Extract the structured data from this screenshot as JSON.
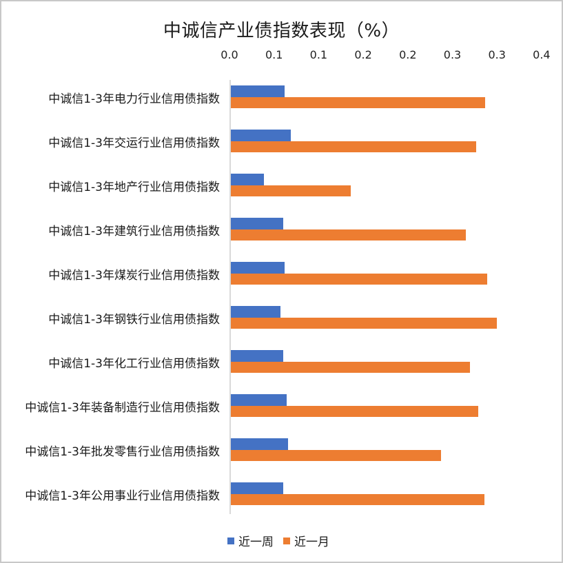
{
  "chart_data": {
    "type": "bar",
    "orientation": "horizontal",
    "title": "中诚信产业债指数表现（%）",
    "xlabel": "",
    "ylabel": "",
    "xlim": [
      0,
      0.35
    ],
    "tick_values": [
      0.0,
      0.05,
      0.1,
      0.15,
      0.2,
      0.25,
      0.3,
      0.35
    ],
    "tick_labels": [
      "0.0",
      "0.1",
      "0.1",
      "0.2",
      "0.2",
      "0.3",
      "0.3",
      "0.4"
    ],
    "axis_position": "top",
    "grid": false,
    "legend_position": "bottom",
    "categories": [
      "中诚信1-3年电力行业信用债指数",
      "中诚信1-3年交运行业信用债指数",
      "中诚信1-3年地产行业信用债指数",
      "中诚信1-3年建筑行业信用债指数",
      "中诚信1-3年煤炭行业信用债指数",
      "中诚信1-3年钢铁行业信用债指数",
      "中诚信1-3年化工行业信用债指数",
      "中诚信1-3年装备制造行业信用债指数",
      "中诚信1-3年批发零售行业信用债指数",
      "中诚信1-3年公用事业行业信用债指数"
    ],
    "series": [
      {
        "name": "近一周",
        "color": "#4472c4",
        "values": [
          0.062,
          0.069,
          0.039,
          0.06,
          0.062,
          0.057,
          0.06,
          0.064,
          0.066,
          0.06
        ]
      },
      {
        "name": "近一月",
        "color": "#ed7d31",
        "values": [
          0.287,
          0.277,
          0.136,
          0.265,
          0.289,
          0.3,
          0.27,
          0.279,
          0.237,
          0.286
        ]
      }
    ]
  },
  "legend": {
    "week_label": "近一周",
    "month_label": "近一月"
  }
}
